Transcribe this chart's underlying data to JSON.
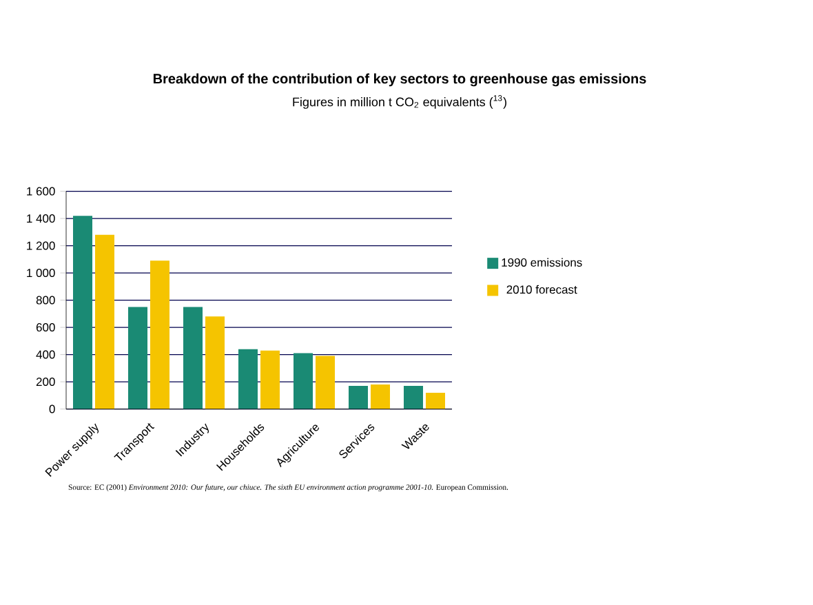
{
  "chart_data": {
    "type": "bar",
    "title": "Breakdown of the contribution of key sectors to greenhouse gas emissions",
    "subtitle": "Figures in million t CO$_{2}$ equivalents ($^{13}$)",
    "categories": [
      "Power supply",
      "Transport",
      "Industry",
      "Households",
      "Agriculture",
      "Services",
      "Waste"
    ],
    "series": [
      {
        "name": "1990 emissions",
        "color": "#1a8a74",
        "values": [
          1420,
          750,
          750,
          440,
          410,
          170,
          170
        ]
      },
      {
        "name": "2010 forecast",
        "color": "#f5c400",
        "values": [
          1280,
          1090,
          680,
          430,
          390,
          180,
          120
        ]
      }
    ],
    "ylim": [
      0,
      1600
    ],
    "yticks": [
      0,
      200,
      400,
      600,
      800,
      {
        "value": 1000,
        "label": "1 000"
      },
      {
        "value": 1200,
        "label": "1 200"
      },
      {
        "value": 1400,
        "label": "1 400"
      },
      {
        "value": 1600,
        "label": "1 600"
      }
    ],
    "grid": "y",
    "legend": "right",
    "annotations": [
      "Source: EC (2001) *Environment 2010: Our future, our chiuce. The sixth EU environment action programme 2001-10.* European Commission."
    ]
  }
}
